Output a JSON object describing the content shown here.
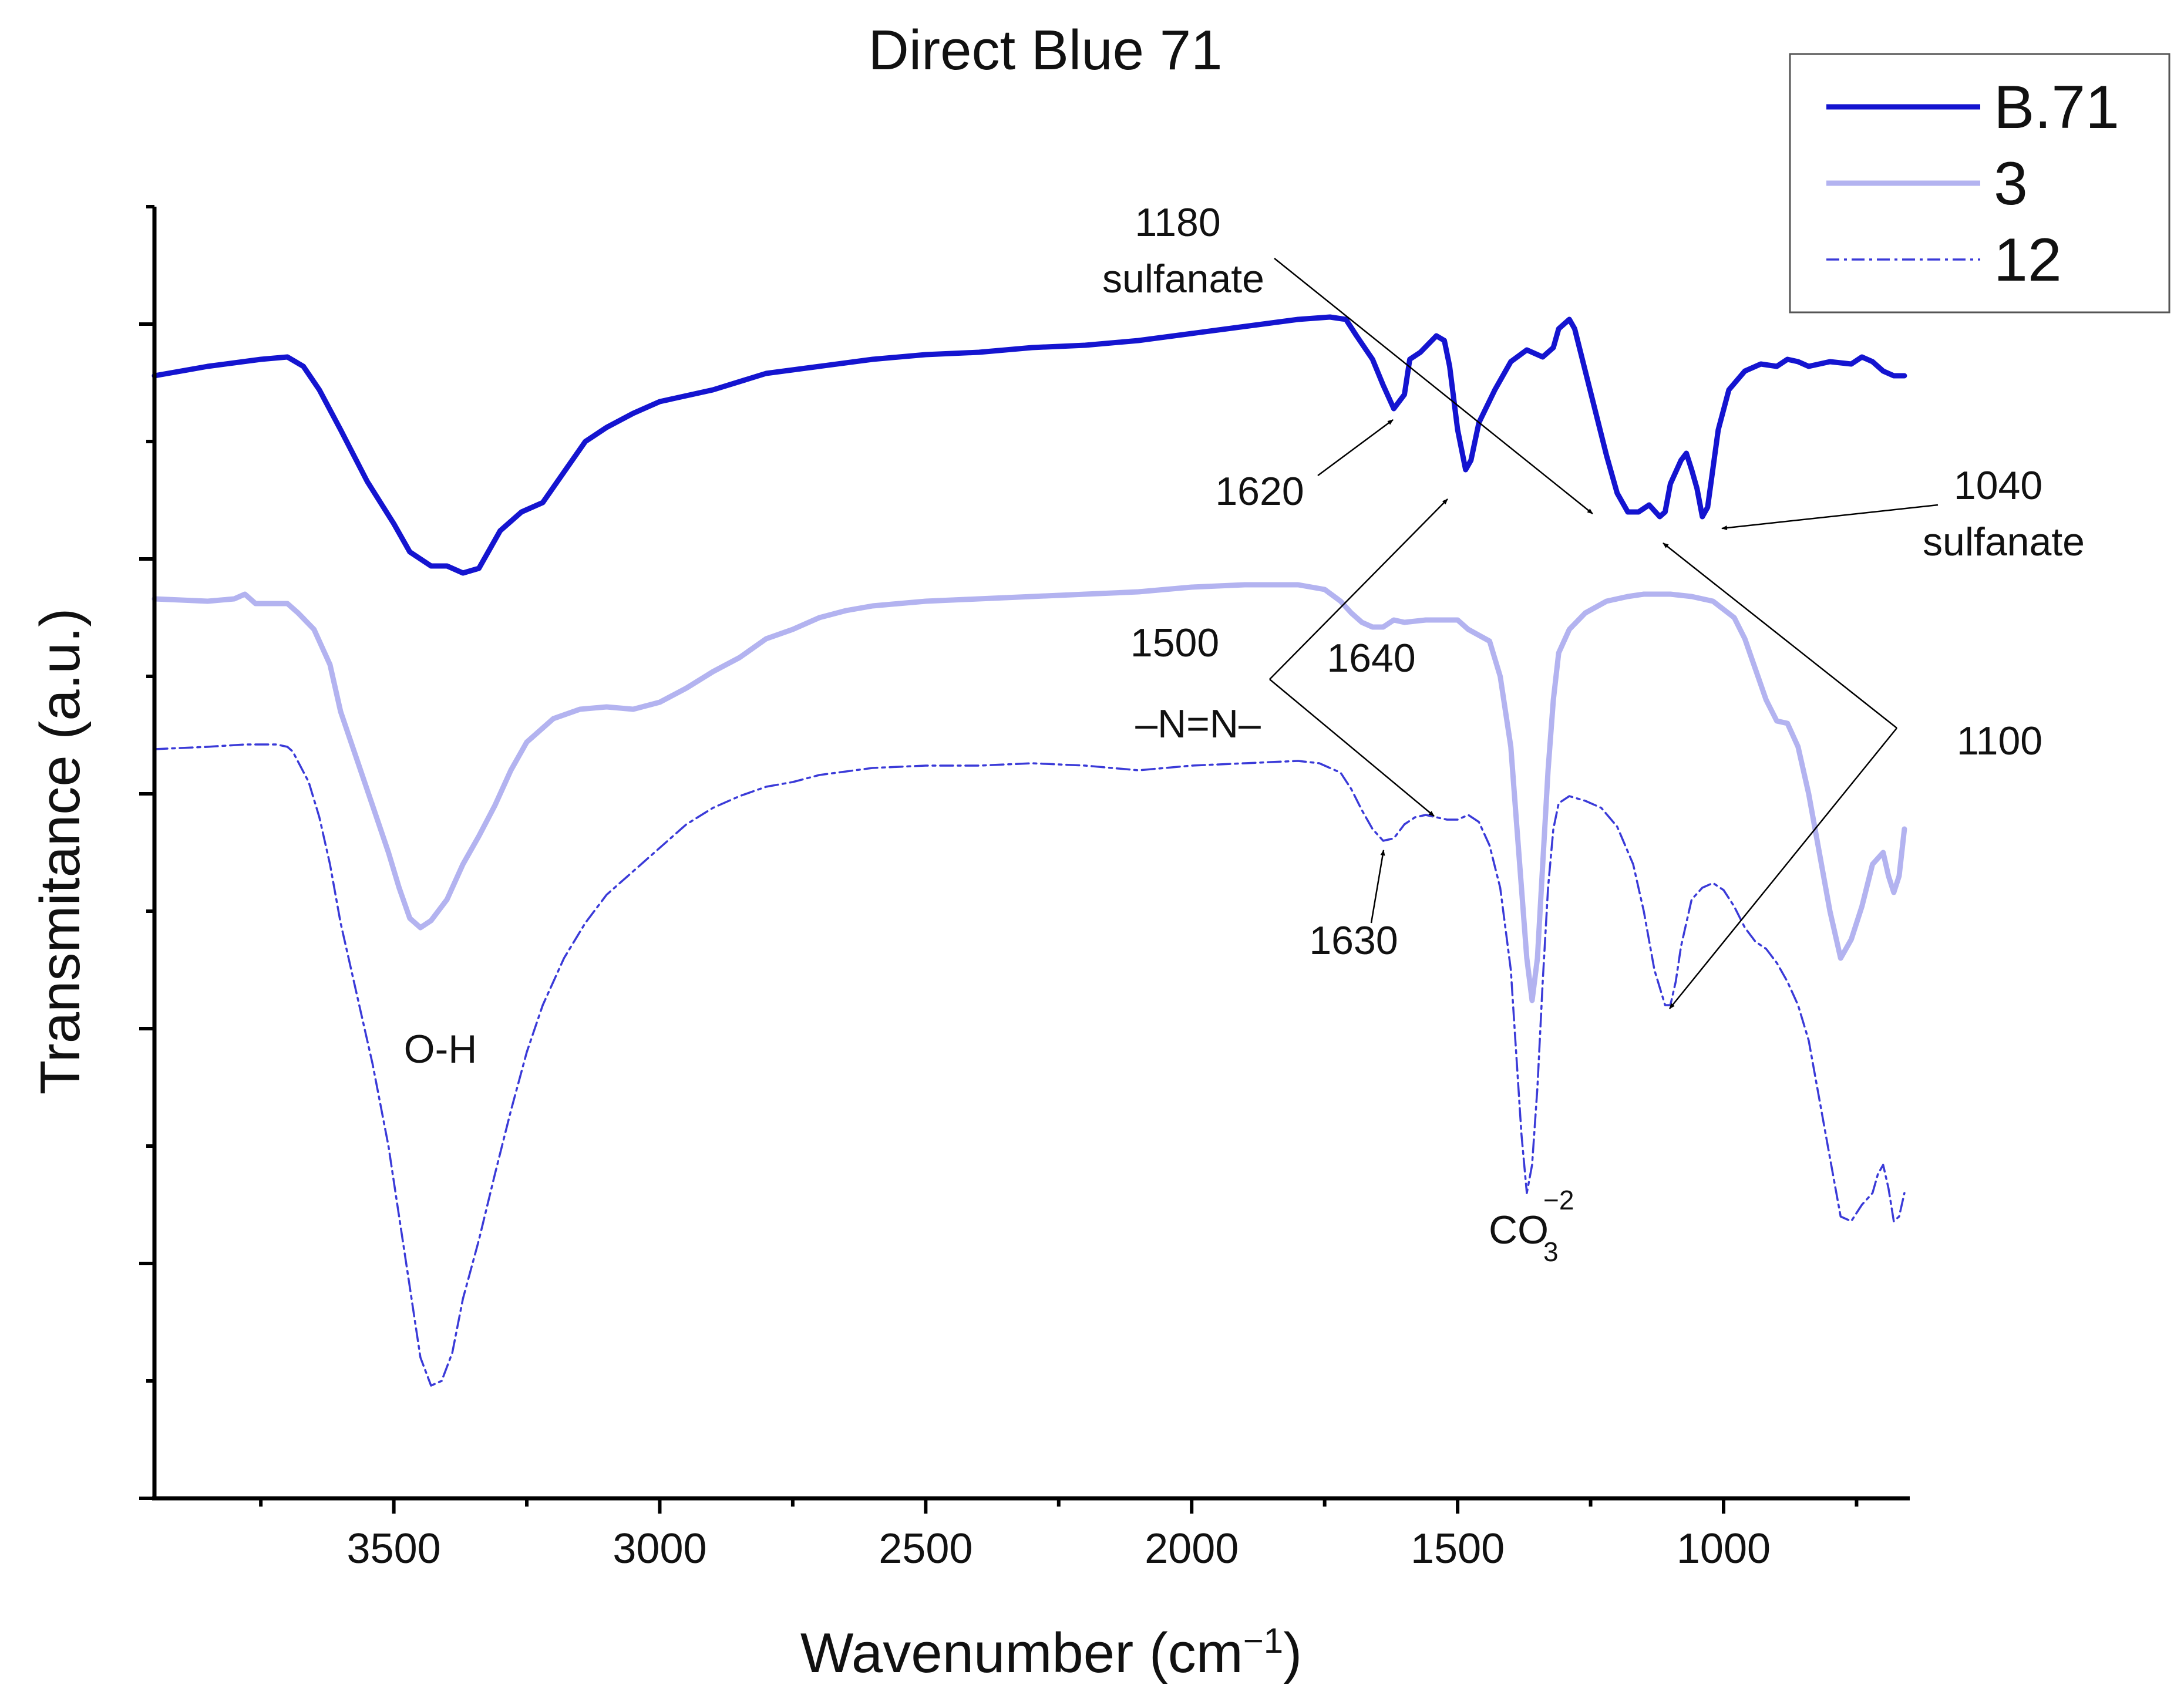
{
  "chart_data": {
    "type": "line",
    "title": "Direct Blue 71",
    "xlabel": "Wavenumber (cm",
    "xlabel_sup": "−1",
    "xlabel_close": ")",
    "ylabel": "Transmitance (a.u.)",
    "xlim": [
      3950,
      650
    ],
    "x_reversed": true,
    "ylim": [
      0,
      5.5
    ],
    "y_tick_labels": "none",
    "x_ticks": [
      3500,
      3000,
      2500,
      2000,
      1500,
      1000
    ],
    "x_tick_labels": [
      "3500",
      "3000",
      "2500",
      "2000",
      "1500",
      "1000"
    ],
    "grid": false,
    "legend": {
      "position": "top-right"
    },
    "series": [
      {
        "name": "B.71",
        "color": "#1414d0",
        "style": "solid-thick",
        "points": [
          [
            3950,
            4.78
          ],
          [
            3850,
            4.82
          ],
          [
            3750,
            4.85
          ],
          [
            3700,
            4.86
          ],
          [
            3670,
            4.82
          ],
          [
            3640,
            4.72
          ],
          [
            3600,
            4.55
          ],
          [
            3550,
            4.33
          ],
          [
            3500,
            4.15
          ],
          [
            3470,
            4.03
          ],
          [
            3430,
            3.97
          ],
          [
            3400,
            3.97
          ],
          [
            3370,
            3.94
          ],
          [
            3340,
            3.96
          ],
          [
            3300,
            4.12
          ],
          [
            3260,
            4.2
          ],
          [
            3220,
            4.24
          ],
          [
            3180,
            4.37
          ],
          [
            3140,
            4.5
          ],
          [
            3100,
            4.56
          ],
          [
            3050,
            4.62
          ],
          [
            3000,
            4.67
          ],
          [
            2900,
            4.72
          ],
          [
            2800,
            4.79
          ],
          [
            2700,
            4.82
          ],
          [
            2600,
            4.85
          ],
          [
            2500,
            4.87
          ],
          [
            2400,
            4.88
          ],
          [
            2300,
            4.9
          ],
          [
            2200,
            4.91
          ],
          [
            2100,
            4.93
          ],
          [
            2000,
            4.96
          ],
          [
            1900,
            4.99
          ],
          [
            1800,
            5.02
          ],
          [
            1740,
            5.03
          ],
          [
            1710,
            5.02
          ],
          [
            1690,
            4.95
          ],
          [
            1660,
            4.85
          ],
          [
            1640,
            4.74
          ],
          [
            1620,
            4.64
          ],
          [
            1600,
            4.7
          ],
          [
            1590,
            4.85
          ],
          [
            1570,
            4.88
          ],
          [
            1540,
            4.95
          ],
          [
            1525,
            4.93
          ],
          [
            1515,
            4.82
          ],
          [
            1500,
            4.55
          ],
          [
            1485,
            4.38
          ],
          [
            1475,
            4.42
          ],
          [
            1460,
            4.58
          ],
          [
            1430,
            4.72
          ],
          [
            1400,
            4.84
          ],
          [
            1370,
            4.89
          ],
          [
            1340,
            4.86
          ],
          [
            1320,
            4.9
          ],
          [
            1310,
            4.98
          ],
          [
            1290,
            5.02
          ],
          [
            1280,
            4.98
          ],
          [
            1260,
            4.8
          ],
          [
            1240,
            4.62
          ],
          [
            1220,
            4.44
          ],
          [
            1200,
            4.28
          ],
          [
            1180,
            4.2
          ],
          [
            1160,
            4.2
          ],
          [
            1140,
            4.23
          ],
          [
            1120,
            4.18
          ],
          [
            1110,
            4.2
          ],
          [
            1100,
            4.32
          ],
          [
            1080,
            4.42
          ],
          [
            1070,
            4.45
          ],
          [
            1060,
            4.38
          ],
          [
            1050,
            4.3
          ],
          [
            1040,
            4.18
          ],
          [
            1030,
            4.22
          ],
          [
            1010,
            4.55
          ],
          [
            990,
            4.72
          ],
          [
            960,
            4.8
          ],
          [
            930,
            4.83
          ],
          [
            900,
            4.82
          ],
          [
            880,
            4.85
          ],
          [
            860,
            4.84
          ],
          [
            840,
            4.82
          ],
          [
            800,
            4.84
          ],
          [
            760,
            4.83
          ],
          [
            740,
            4.86
          ],
          [
            720,
            4.84
          ],
          [
            700,
            4.8
          ],
          [
            680,
            4.78
          ],
          [
            660,
            4.78
          ]
        ]
      },
      {
        "name": "3",
        "color": "#b3b3f0",
        "style": "solid-thick",
        "points": [
          [
            3950,
            3.83
          ],
          [
            3850,
            3.82
          ],
          [
            3800,
            3.83
          ],
          [
            3780,
            3.85
          ],
          [
            3760,
            3.81
          ],
          [
            3730,
            3.81
          ],
          [
            3700,
            3.81
          ],
          [
            3680,
            3.77
          ],
          [
            3650,
            3.7
          ],
          [
            3620,
            3.55
          ],
          [
            3600,
            3.35
          ],
          [
            3570,
            3.15
          ],
          [
            3540,
            2.95
          ],
          [
            3510,
            2.75
          ],
          [
            3490,
            2.6
          ],
          [
            3470,
            2.47
          ],
          [
            3450,
            2.43
          ],
          [
            3430,
            2.46
          ],
          [
            3400,
            2.55
          ],
          [
            3370,
            2.7
          ],
          [
            3340,
            2.82
          ],
          [
            3310,
            2.95
          ],
          [
            3280,
            3.1
          ],
          [
            3250,
            3.22
          ],
          [
            3200,
            3.32
          ],
          [
            3150,
            3.36
          ],
          [
            3100,
            3.37
          ],
          [
            3050,
            3.36
          ],
          [
            3000,
            3.39
          ],
          [
            2950,
            3.45
          ],
          [
            2900,
            3.52
          ],
          [
            2850,
            3.58
          ],
          [
            2800,
            3.66
          ],
          [
            2750,
            3.7
          ],
          [
            2700,
            3.75
          ],
          [
            2650,
            3.78
          ],
          [
            2600,
            3.8
          ],
          [
            2550,
            3.81
          ],
          [
            2500,
            3.82
          ],
          [
            2400,
            3.83
          ],
          [
            2300,
            3.84
          ],
          [
            2200,
            3.85
          ],
          [
            2100,
            3.86
          ],
          [
            2000,
            3.88
          ],
          [
            1900,
            3.89
          ],
          [
            1800,
            3.89
          ],
          [
            1750,
            3.87
          ],
          [
            1720,
            3.82
          ],
          [
            1700,
            3.77
          ],
          [
            1680,
            3.73
          ],
          [
            1660,
            3.71
          ],
          [
            1640,
            3.71
          ],
          [
            1620,
            3.74
          ],
          [
            1600,
            3.73
          ],
          [
            1560,
            3.74
          ],
          [
            1500,
            3.74
          ],
          [
            1480,
            3.7
          ],
          [
            1440,
            3.65
          ],
          [
            1420,
            3.5
          ],
          [
            1400,
            3.2
          ],
          [
            1390,
            2.9
          ],
          [
            1380,
            2.6
          ],
          [
            1370,
            2.3
          ],
          [
            1360,
            2.12
          ],
          [
            1350,
            2.3
          ],
          [
            1340,
            2.7
          ],
          [
            1330,
            3.1
          ],
          [
            1320,
            3.4
          ],
          [
            1310,
            3.6
          ],
          [
            1290,
            3.7
          ],
          [
            1260,
            3.77
          ],
          [
            1220,
            3.82
          ],
          [
            1180,
            3.84
          ],
          [
            1150,
            3.85
          ],
          [
            1100,
            3.85
          ],
          [
            1060,
            3.84
          ],
          [
            1020,
            3.82
          ],
          [
            980,
            3.75
          ],
          [
            960,
            3.66
          ],
          [
            940,
            3.53
          ],
          [
            920,
            3.4
          ],
          [
            900,
            3.31
          ],
          [
            880,
            3.3
          ],
          [
            860,
            3.2
          ],
          [
            840,
            3.0
          ],
          [
            820,
            2.75
          ],
          [
            800,
            2.5
          ],
          [
            780,
            2.3
          ],
          [
            760,
            2.38
          ],
          [
            740,
            2.52
          ],
          [
            720,
            2.7
          ],
          [
            700,
            2.75
          ],
          [
            690,
            2.65
          ],
          [
            680,
            2.58
          ],
          [
            670,
            2.65
          ],
          [
            660,
            2.85
          ]
        ]
      },
      {
        "name": "12",
        "color": "#3a3ad8",
        "style": "dash-dot-thin",
        "points": [
          [
            3950,
            3.19
          ],
          [
            3850,
            3.2
          ],
          [
            3780,
            3.21
          ],
          [
            3720,
            3.21
          ],
          [
            3700,
            3.2
          ],
          [
            3690,
            3.18
          ],
          [
            3660,
            3.05
          ],
          [
            3640,
            2.9
          ],
          [
            3620,
            2.7
          ],
          [
            3600,
            2.45
          ],
          [
            3570,
            2.15
          ],
          [
            3540,
            1.85
          ],
          [
            3510,
            1.5
          ],
          [
            3490,
            1.2
          ],
          [
            3470,
            0.9
          ],
          [
            3450,
            0.6
          ],
          [
            3430,
            0.48
          ],
          [
            3410,
            0.5
          ],
          [
            3390,
            0.62
          ],
          [
            3370,
            0.85
          ],
          [
            3340,
            1.1
          ],
          [
            3310,
            1.38
          ],
          [
            3280,
            1.65
          ],
          [
            3250,
            1.9
          ],
          [
            3220,
            2.1
          ],
          [
            3180,
            2.3
          ],
          [
            3140,
            2.45
          ],
          [
            3100,
            2.57
          ],
          [
            3050,
            2.67
          ],
          [
            3000,
            2.77
          ],
          [
            2950,
            2.87
          ],
          [
            2900,
            2.94
          ],
          [
            2850,
            2.99
          ],
          [
            2800,
            3.03
          ],
          [
            2750,
            3.05
          ],
          [
            2700,
            3.08
          ],
          [
            2600,
            3.11
          ],
          [
            2500,
            3.12
          ],
          [
            2400,
            3.12
          ],
          [
            2300,
            3.13
          ],
          [
            2200,
            3.12
          ],
          [
            2100,
            3.1
          ],
          [
            2000,
            3.12
          ],
          [
            1900,
            3.13
          ],
          [
            1800,
            3.14
          ],
          [
            1760,
            3.13
          ],
          [
            1720,
            3.09
          ],
          [
            1700,
            3.02
          ],
          [
            1680,
            2.93
          ],
          [
            1660,
            2.85
          ],
          [
            1640,
            2.8
          ],
          [
            1620,
            2.81
          ],
          [
            1600,
            2.87
          ],
          [
            1580,
            2.9
          ],
          [
            1560,
            2.91
          ],
          [
            1540,
            2.9
          ],
          [
            1520,
            2.89
          ],
          [
            1500,
            2.89
          ],
          [
            1480,
            2.91
          ],
          [
            1460,
            2.88
          ],
          [
            1440,
            2.78
          ],
          [
            1420,
            2.6
          ],
          [
            1400,
            2.25
          ],
          [
            1390,
            1.9
          ],
          [
            1380,
            1.55
          ],
          [
            1370,
            1.3
          ],
          [
            1360,
            1.42
          ],
          [
            1350,
            1.75
          ],
          [
            1340,
            2.2
          ],
          [
            1330,
            2.6
          ],
          [
            1320,
            2.85
          ],
          [
            1310,
            2.96
          ],
          [
            1290,
            2.99
          ],
          [
            1260,
            2.97
          ],
          [
            1230,
            2.94
          ],
          [
            1200,
            2.86
          ],
          [
            1170,
            2.7
          ],
          [
            1150,
            2.5
          ],
          [
            1130,
            2.25
          ],
          [
            1110,
            2.1
          ],
          [
            1100,
            2.1
          ],
          [
            1090,
            2.2
          ],
          [
            1080,
            2.35
          ],
          [
            1060,
            2.55
          ],
          [
            1040,
            2.6
          ],
          [
            1020,
            2.62
          ],
          [
            1000,
            2.59
          ],
          [
            980,
            2.52
          ],
          [
            960,
            2.43
          ],
          [
            940,
            2.37
          ],
          [
            920,
            2.34
          ],
          [
            900,
            2.28
          ],
          [
            880,
            2.2
          ],
          [
            860,
            2.1
          ],
          [
            840,
            1.95
          ],
          [
            820,
            1.7
          ],
          [
            800,
            1.45
          ],
          [
            780,
            1.2
          ],
          [
            760,
            1.18
          ],
          [
            740,
            1.25
          ],
          [
            720,
            1.3
          ],
          [
            710,
            1.38
          ],
          [
            700,
            1.42
          ],
          [
            690,
            1.32
          ],
          [
            680,
            1.18
          ],
          [
            670,
            1.2
          ],
          [
            660,
            1.3
          ]
        ]
      }
    ],
    "annotations": [
      {
        "id": "ann-1180",
        "lines": [
          "1180",
          "sulfanate"
        ]
      },
      {
        "id": "ann-1620",
        "lines": [
          "1620"
        ]
      },
      {
        "id": "ann-1040",
        "lines": [
          "1040",
          "sulfanate"
        ]
      },
      {
        "id": "ann-1500",
        "lines": [
          "1500",
          "–N=N–"
        ]
      },
      {
        "id": "ann-1640",
        "lines": [
          "1640"
        ]
      },
      {
        "id": "ann-1100",
        "lines": [
          "1100"
        ]
      },
      {
        "id": "ann-1630",
        "lines": [
          "1630"
        ]
      },
      {
        "id": "ann-oh",
        "lines": [
          "O-H"
        ]
      },
      {
        "id": "ann-co3",
        "text": "CO",
        "sub": "3",
        "sup": "−2"
      }
    ]
  }
}
